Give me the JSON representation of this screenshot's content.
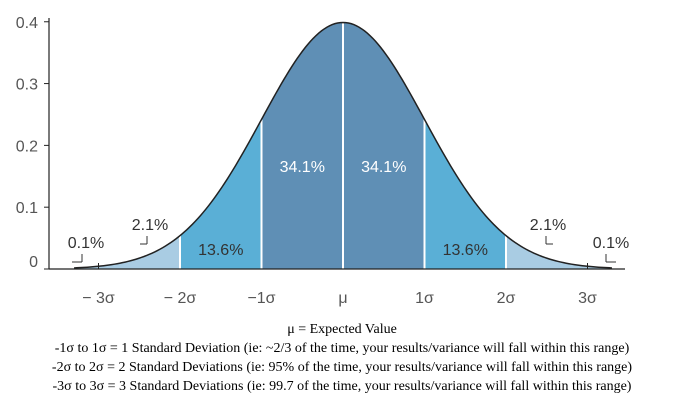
{
  "chart_data": {
    "type": "area",
    "title": "",
    "xlabel": "",
    "ylabel": "",
    "x_ticks": [
      "− 3σ",
      "− 2σ",
      "−1σ",
      "μ",
      "1σ",
      "2σ",
      "3σ"
    ],
    "x_tick_values": [
      -3,
      -2,
      -1,
      0,
      1,
      2,
      3
    ],
    "y_ticks": [
      "0",
      "0.1",
      "0.2",
      "0.3",
      "0.4"
    ],
    "y_tick_values": [
      0,
      0.1,
      0.2,
      0.3,
      0.4
    ],
    "xlim": [
      -3.3,
      3.3
    ],
    "ylim": [
      0,
      0.4
    ],
    "peak_density": 0.3989,
    "regions": [
      {
        "from": -3.3,
        "to": -2,
        "label": "2.1%",
        "value": 2.1,
        "color": "#a9cce3"
      },
      {
        "from": -2,
        "to": -1,
        "label": "13.6%",
        "value": 13.6,
        "color": "#5aafd6"
      },
      {
        "from": -1,
        "to": 0,
        "label": "34.1%",
        "value": 34.1,
        "color": "#5f8fb5"
      },
      {
        "from": 0,
        "to": 1,
        "label": "34.1%",
        "value": 34.1,
        "color": "#5f8fb5"
      },
      {
        "from": 1,
        "to": 2,
        "label": "13.6%",
        "value": 13.6,
        "color": "#5aafd6"
      },
      {
        "from": 2,
        "to": 3.3,
        "label": "2.1%",
        "value": 2.1,
        "color": "#a9cce3"
      }
    ],
    "tail_labels": [
      {
        "at": -3,
        "label": "0.1%",
        "value": 0.1
      },
      {
        "at": 3,
        "label": "0.1%",
        "value": 0.1
      }
    ],
    "grid": false,
    "legend": "none"
  },
  "notes": {
    "expected": "μ = Expected Value",
    "lines": [
      "-1σ to 1σ = 1 Standard Deviation (ie: ~2/3 of the time, your results/variance will fall within this range)",
      "-2σ to 2σ = 2 Standard Deviations (ie: 95% of the time, your results/variance will fall within this range)",
      "-3σ to 3σ = 3 Standard Deviations (ie: 99.7 of the time, your results/variance will fall within this range)"
    ]
  }
}
